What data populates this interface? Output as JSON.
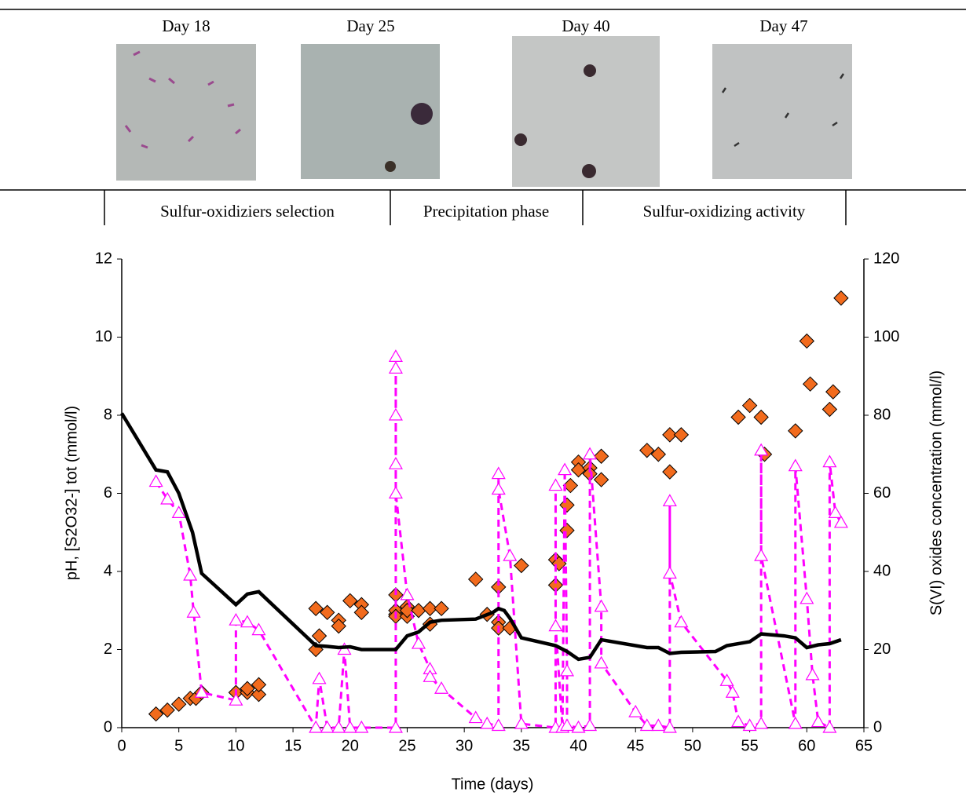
{
  "panels": [
    "Day 18",
    "Day 25",
    "Day 40",
    "Day 47"
  ],
  "phases": [
    "Sulfur-oxidiziers selection",
    "Precipitation phase",
    "Sulfur-oxidizing activity"
  ],
  "chart_data": {
    "type": "line",
    "xlabel": "Time (days)",
    "ylabel": "pH, [S2O32-] tot (mmol/l)",
    "y2label": "S(VI) oxides concentration (mmol/l)",
    "xlim": [
      0,
      65
    ],
    "xticks": [
      0,
      5,
      10,
      15,
      20,
      25,
      30,
      35,
      40,
      45,
      50,
      55,
      60,
      65
    ],
    "ylim": [
      0,
      12
    ],
    "yticks": [
      0,
      2,
      4,
      6,
      8,
      10,
      12
    ],
    "y2lim": [
      0,
      120
    ],
    "y2ticks": [
      0,
      20,
      40,
      60,
      80,
      100,
      120
    ],
    "grid": false,
    "series": [
      {
        "color": "#000000",
        "style": "solid",
        "marker": "none",
        "x": [
          0,
          3,
          4,
          5,
          6.2,
          7,
          10,
          11,
          12,
          17,
          18,
          19,
          20,
          21,
          24,
          25,
          26,
          27,
          28,
          31,
          32.5,
          33,
          33.5,
          34,
          35,
          38,
          39,
          40,
          41,
          42,
          46,
          47,
          48,
          49,
          52,
          53,
          55,
          56,
          58,
          59,
          60,
          61,
          62,
          63
        ],
        "values": [
          8.05,
          6.6,
          6.55,
          6.0,
          5.0,
          3.95,
          3.15,
          3.42,
          3.48,
          2.1,
          2.08,
          2.05,
          2.07,
          2.0,
          2.0,
          2.35,
          2.45,
          2.7,
          2.75,
          2.78,
          2.95,
          3.05,
          3.0,
          2.8,
          2.3,
          2.1,
          1.95,
          1.75,
          1.8,
          2.25,
          2.05,
          2.05,
          1.9,
          1.93,
          1.95,
          2.1,
          2.2,
          2.4,
          2.35,
          2.3,
          2.05,
          2.12,
          2.15,
          2.25
        ]
      },
      {
        "color": "#ff00ff",
        "style": "dashed",
        "marker": "triangle",
        "x": [
          3,
          4,
          5,
          6,
          6.3,
          7,
          10,
          10,
          11,
          12,
          17,
          17.3,
          18,
          19,
          19.5,
          20,
          21,
          24,
          24,
          24,
          24,
          24,
          24,
          25,
          26,
          27,
          27,
          28,
          31,
          32,
          33,
          33,
          33,
          34,
          35,
          38,
          38,
          38,
          38.6,
          38.8,
          39,
          39,
          40,
          41,
          41,
          42,
          42,
          45,
          46,
          47,
          48,
          48,
          48,
          49,
          53,
          53.5,
          54,
          55,
          56,
          56,
          56,
          59,
          59,
          60,
          60.5,
          61,
          62,
          62,
          62.5,
          63
        ],
        "values": [
          6.3,
          5.85,
          5.5,
          3.9,
          2.95,
          0.9,
          0.7,
          2.75,
          2.7,
          2.5,
          0,
          1.25,
          0,
          0,
          2.0,
          0,
          0,
          0,
          9.5,
          9.2,
          8.0,
          6.75,
          6.0,
          3.4,
          2.15,
          1.5,
          1.3,
          1.0,
          0.25,
          0.1,
          0.05,
          6.5,
          6.1,
          4.4,
          0.1,
          0,
          6.2,
          2.6,
          0,
          6.6,
          1.45,
          0.05,
          0,
          0.05,
          7.0,
          3.1,
          1.65,
          0.4,
          0.05,
          0.05,
          0,
          5.8,
          3.95,
          2.7,
          1.2,
          0.9,
          0.15,
          0.05,
          0.1,
          7.1,
          4.4,
          0.1,
          6.7,
          3.3,
          1.35,
          0.15,
          0,
          6.8,
          5.5,
          5.25
        ]
      },
      {
        "color": "#f26b1d",
        "style": "none",
        "marker": "diamond",
        "axis": "y2",
        "x": [
          3,
          4,
          5,
          6,
          6.5,
          7,
          10,
          11,
          11,
          12,
          12,
          17,
          17,
          17.3,
          18,
          19,
          19,
          20,
          21,
          21,
          24,
          24,
          24,
          24,
          25,
          25,
          25,
          26,
          27,
          27,
          28,
          31,
          32,
          33,
          33,
          33,
          34,
          35,
          38,
          38,
          38.3,
          39,
          39,
          39.3,
          40,
          40,
          41,
          41,
          42,
          42,
          46,
          47,
          48,
          48,
          49,
          54,
          55,
          56,
          56.3,
          59,
          60,
          60.3,
          62,
          62.3,
          63
        ],
        "values": [
          3.5,
          4.5,
          6,
          7.5,
          7.5,
          9,
          9,
          9,
          10,
          8.5,
          11,
          20,
          30.5,
          23.5,
          29.5,
          27.5,
          26,
          32.5,
          31.5,
          29.5,
          29,
          30,
          34,
          28.5,
          28.5,
          31,
          30,
          30,
          26.5,
          30.5,
          30.5,
          38,
          29,
          27,
          36,
          25.5,
          25.5,
          41.5,
          43,
          36.5,
          42,
          57,
          50.5,
          62,
          68,
          66,
          66.5,
          65,
          69.5,
          63.5,
          71,
          70,
          75,
          65.5,
          75,
          79.5,
          82.5,
          79.5,
          70,
          76,
          99,
          88,
          81.5,
          86,
          110
        ]
      }
    ]
  }
}
